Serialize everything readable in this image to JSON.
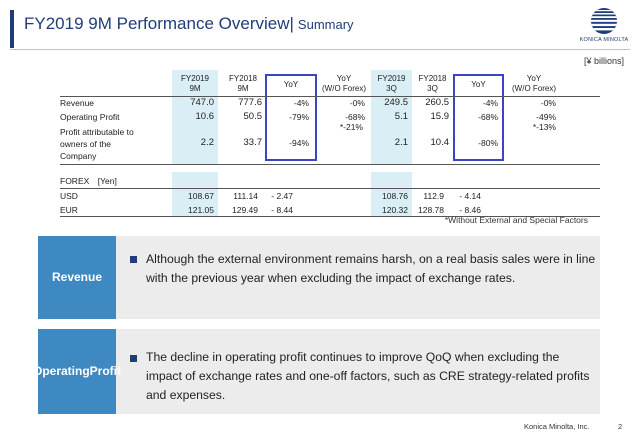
{
  "slide": {
    "title": "FY2019 9M Performance Overview",
    "separator": "|",
    "subtitle": "Summary",
    "units": "[¥ billions]",
    "logo_text": "KONICA MINOLTA",
    "footnote": "*Without External and Special Factors",
    "footer": "Konica Minolta, Inc.",
    "page_number": "2",
    "colors": {
      "title": "#1f3d7a",
      "highlight": "#d9eef5",
      "yoy_box": "#3a45c4",
      "tag": "#3f89c2",
      "panel": "#ececec"
    }
  },
  "table": {
    "headers": {
      "fy2019_9m": [
        "FY2019",
        "9M"
      ],
      "fy2018_9m": [
        "FY2018",
        "9M"
      ],
      "yoy_9m": "YoY",
      "yoy_wo_9m": [
        "YoY",
        "(W/O Forex)"
      ],
      "fy2019_3q": [
        "FY2019",
        "3Q"
      ],
      "fy2018_3q": [
        "FY2018",
        "3Q"
      ],
      "yoy_3q": "YoY",
      "yoy_wo_3q": [
        "YoY",
        "(W/O Forex)"
      ]
    },
    "rows": [
      {
        "label": "Revenue",
        "c1": "747.0",
        "c2": "777.6",
        "c3": "-4%",
        "c4": "-0%",
        "c5": "249.5",
        "c6": "260.5",
        "c7": "-4%",
        "c8": "-0%"
      },
      {
        "label": "Operating Profit",
        "c1": "10.6",
        "c2": "50.5",
        "c3": "-79%",
        "c4": "-68%",
        "c4b": "*-21%",
        "c5": "5.1",
        "c6": "15.9",
        "c7": "-68%",
        "c8": "-49%",
        "c8b": "*-13%"
      },
      {
        "label": [
          "Profit attributable to",
          "owners of the",
          "Company"
        ],
        "c1": "2.2",
        "c2": "33.7",
        "c3": "-94%",
        "c4": "",
        "c5": "2.1",
        "c6": "10.4",
        "c7": "-80%",
        "c8": ""
      }
    ],
    "forex_header": "FOREX　[Yen]",
    "forex": [
      {
        "label": "USD",
        "c1": "108.67",
        "c2": "111.14",
        "c3": "- 2.47",
        "c5": "108.76",
        "c6": "112.9",
        "c7": "- 4.14"
      },
      {
        "label": "EUR",
        "c1": "121.05",
        "c2": "129.49",
        "c3": "- 8.44",
        "c5": "120.32",
        "c6": "128.78",
        "c7": "- 8.46"
      }
    ]
  },
  "sections": [
    {
      "tag": "Revenue",
      "text": "Although the external environment remains harsh, on a real basis sales were in line with the previous year when excluding the impact of exchange rates."
    },
    {
      "tag": [
        "Operating",
        "Profit"
      ],
      "text": "The decline in operating profit continues to improve QoQ when excluding the impact of exchange rates and one-off factors, such as CRE strategy-related profits and expenses."
    }
  ]
}
